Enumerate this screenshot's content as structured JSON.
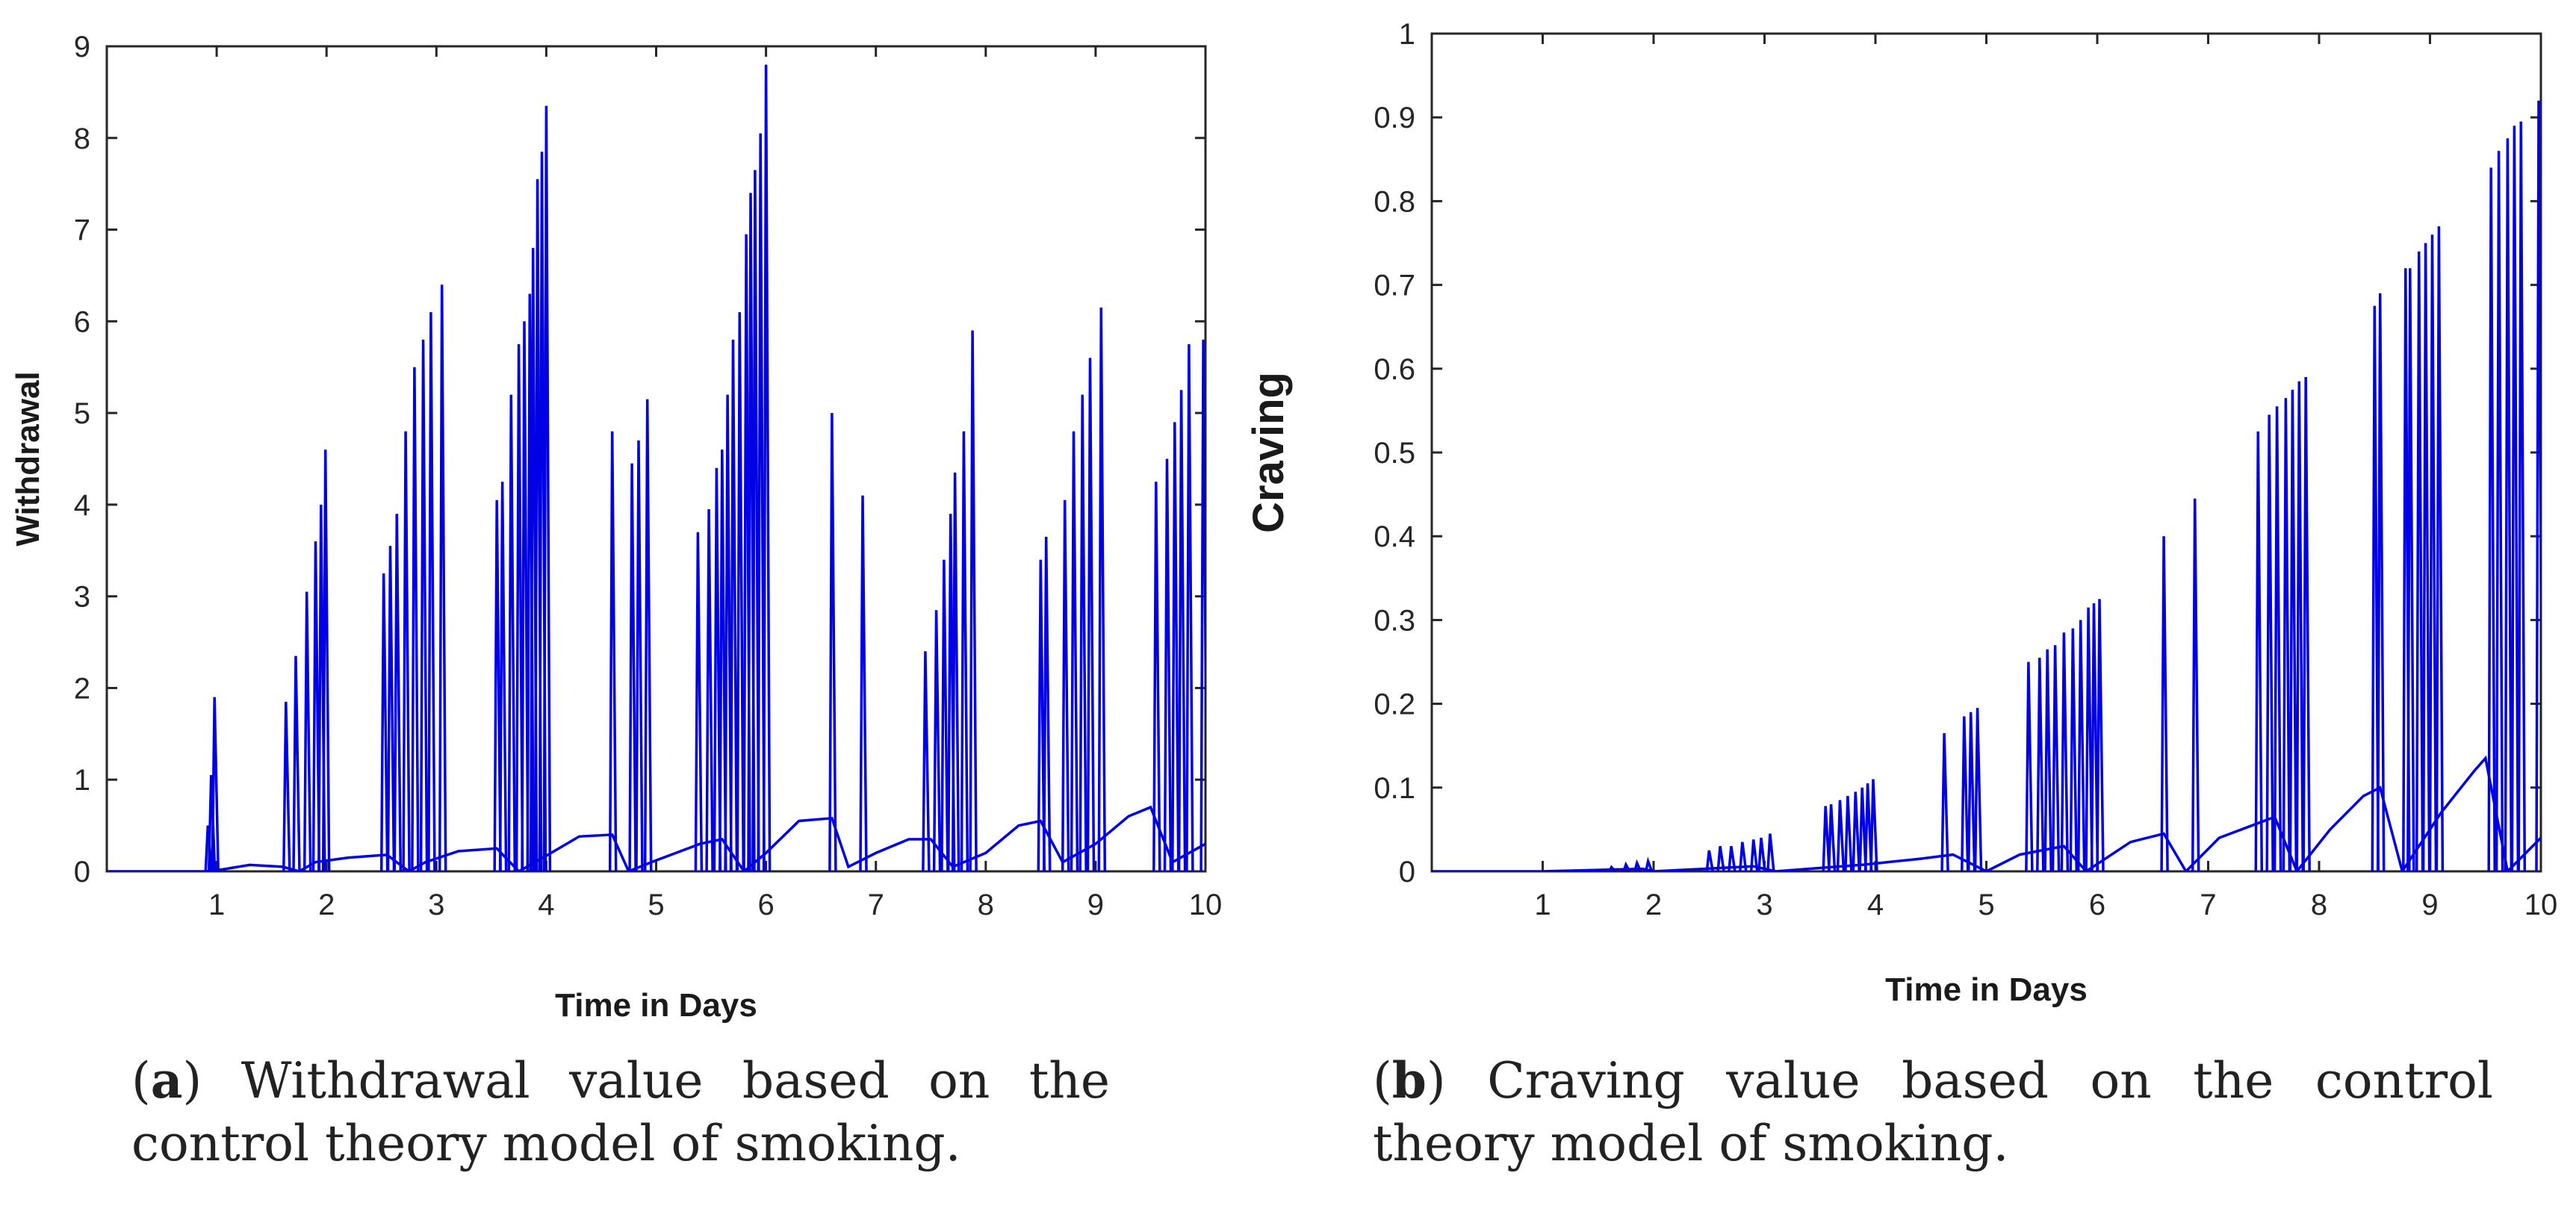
{
  "chart_data": [
    {
      "type": "line",
      "id": "a",
      "title": "",
      "xlabel": "Time in Days",
      "ylabel": "Withdrawal",
      "xlim": [
        0,
        10
      ],
      "ylim": [
        0,
        9
      ],
      "xticks": [
        1,
        2,
        3,
        4,
        5,
        6,
        7,
        8,
        9,
        10
      ],
      "yticks": [
        0,
        1,
        2,
        3,
        4,
        5,
        6,
        7,
        8,
        9
      ],
      "grid": false,
      "color": "#0000e6",
      "series": [
        {
          "name": "Withdrawal",
          "baseline": [
            [
              0,
              0
            ],
            [
              0.9,
              0
            ],
            [
              1.05,
              0.02
            ],
            [
              1.3,
              0.07
            ],
            [
              1.6,
              0.05
            ],
            [
              1.75,
              0.0
            ],
            [
              1.9,
              0.1
            ],
            [
              2.2,
              0.15
            ],
            [
              2.55,
              0.18
            ],
            [
              2.75,
              0.0
            ],
            [
              2.9,
              0.1
            ],
            [
              3.2,
              0.22
            ],
            [
              3.55,
              0.25
            ],
            [
              3.75,
              0.0
            ],
            [
              3.9,
              0.1
            ],
            [
              4.3,
              0.38
            ],
            [
              4.6,
              0.4
            ],
            [
              4.75,
              0.0
            ],
            [
              5.0,
              0.12
            ],
            [
              5.4,
              0.3
            ],
            [
              5.6,
              0.35
            ],
            [
              5.8,
              0.0
            ],
            [
              6.0,
              0.2
            ],
            [
              6.3,
              0.55
            ],
            [
              6.6,
              0.58
            ],
            [
              6.75,
              0.05
            ],
            [
              7.0,
              0.2
            ],
            [
              7.3,
              0.35
            ],
            [
              7.5,
              0.35
            ],
            [
              7.7,
              0.05
            ],
            [
              8.0,
              0.2
            ],
            [
              8.3,
              0.5
            ],
            [
              8.5,
              0.55
            ],
            [
              8.7,
              0.1
            ],
            [
              9.0,
              0.3
            ],
            [
              9.3,
              0.6
            ],
            [
              9.5,
              0.7
            ],
            [
              9.7,
              0.1
            ],
            [
              10.0,
              0.3
            ]
          ],
          "spikes": [
            [
              0.92,
              0.5
            ],
            [
              0.95,
              1.05
            ],
            [
              0.98,
              1.9
            ],
            [
              1.63,
              1.85
            ],
            [
              1.72,
              2.35
            ],
            [
              1.82,
              3.05
            ],
            [
              1.9,
              3.6
            ],
            [
              1.95,
              4.0
            ],
            [
              1.99,
              4.6
            ],
            [
              2.52,
              3.25
            ],
            [
              2.58,
              3.55
            ],
            [
              2.64,
              3.9
            ],
            [
              2.72,
              4.8
            ],
            [
              2.8,
              5.5
            ],
            [
              2.88,
              5.8
            ],
            [
              2.95,
              6.1
            ],
            [
              3.05,
              6.4
            ],
            [
              3.55,
              4.05
            ],
            [
              3.6,
              4.25
            ],
            [
              3.68,
              5.2
            ],
            [
              3.75,
              5.75
            ],
            [
              3.8,
              6.0
            ],
            [
              3.85,
              6.3
            ],
            [
              3.88,
              6.8
            ],
            [
              3.92,
              7.55
            ],
            [
              3.96,
              7.85
            ],
            [
              4.0,
              8.35
            ],
            [
              4.6,
              4.8
            ],
            [
              4.78,
              4.45
            ],
            [
              4.84,
              4.7
            ],
            [
              4.92,
              5.15
            ],
            [
              5.38,
              3.7
            ],
            [
              5.48,
              3.95
            ],
            [
              5.55,
              4.4
            ],
            [
              5.6,
              4.6
            ],
            [
              5.65,
              5.2
            ],
            [
              5.7,
              5.8
            ],
            [
              5.76,
              6.1
            ],
            [
              5.82,
              6.95
            ],
            [
              5.86,
              7.4
            ],
            [
              5.9,
              7.65
            ],
            [
              5.95,
              8.05
            ],
            [
              6.0,
              8.8
            ],
            [
              6.6,
              5.0
            ],
            [
              6.88,
              4.1
            ],
            [
              7.45,
              2.4
            ],
            [
              7.55,
              2.85
            ],
            [
              7.62,
              3.4
            ],
            [
              7.68,
              3.9
            ],
            [
              7.72,
              4.35
            ],
            [
              7.8,
              4.8
            ],
            [
              7.88,
              5.9
            ],
            [
              8.5,
              3.4
            ],
            [
              8.55,
              3.65
            ],
            [
              8.72,
              4.05
            ],
            [
              8.8,
              4.8
            ],
            [
              8.88,
              5.2
            ],
            [
              8.95,
              5.6
            ],
            [
              9.05,
              6.15
            ],
            [
              9.55,
              4.25
            ],
            [
              9.65,
              4.5
            ],
            [
              9.72,
              4.9
            ],
            [
              9.78,
              5.25
            ],
            [
              9.85,
              5.75
            ],
            [
              9.98,
              5.8
            ]
          ]
        }
      ]
    },
    {
      "type": "line",
      "id": "b",
      "title": "",
      "xlabel": "Time in Days",
      "ylabel": "Craving",
      "xlim": [
        0,
        10
      ],
      "ylim": [
        0,
        1
      ],
      "xticks": [
        1,
        2,
        3,
        4,
        5,
        6,
        7,
        8,
        9,
        10
      ],
      "yticks": [
        0,
        0.1,
        0.2,
        0.3,
        0.4,
        0.5,
        0.6,
        0.7,
        0.8,
        0.9,
        1
      ],
      "grid": false,
      "color": "#0000e6",
      "series": [
        {
          "name": "Craving",
          "baseline": [
            [
              0,
              0
            ],
            [
              1.0,
              0.0
            ],
            [
              1.9,
              0.003
            ],
            [
              2.0,
              0.0
            ],
            [
              2.9,
              0.006
            ],
            [
              3.1,
              0.0
            ],
            [
              3.9,
              0.008
            ],
            [
              4.4,
              0.015
            ],
            [
              4.7,
              0.02
            ],
            [
              5.0,
              0.0
            ],
            [
              5.3,
              0.02
            ],
            [
              5.7,
              0.03
            ],
            [
              5.9,
              0.0
            ],
            [
              6.3,
              0.035
            ],
            [
              6.6,
              0.045
            ],
            [
              6.8,
              0.0
            ],
            [
              7.1,
              0.04
            ],
            [
              7.4,
              0.055
            ],
            [
              7.6,
              0.065
            ],
            [
              7.8,
              0.0
            ],
            [
              8.1,
              0.05
            ],
            [
              8.4,
              0.09
            ],
            [
              8.55,
              0.1
            ],
            [
              8.75,
              0.0
            ],
            [
              9.1,
              0.07
            ],
            [
              9.4,
              0.12
            ],
            [
              9.5,
              0.135
            ],
            [
              9.7,
              0.0
            ],
            [
              10.0,
              0.04
            ]
          ],
          "spikes": [
            [
              1.62,
              0.005
            ],
            [
              1.75,
              0.008
            ],
            [
              1.85,
              0.01
            ],
            [
              1.95,
              0.012
            ],
            [
              2.5,
              0.025
            ],
            [
              2.6,
              0.03
            ],
            [
              2.7,
              0.03
            ],
            [
              2.8,
              0.035
            ],
            [
              2.9,
              0.038
            ],
            [
              2.97,
              0.04
            ],
            [
              3.05,
              0.045
            ],
            [
              3.55,
              0.078
            ],
            [
              3.6,
              0.08
            ],
            [
              3.68,
              0.085
            ],
            [
              3.75,
              0.09
            ],
            [
              3.82,
              0.095
            ],
            [
              3.88,
              0.1
            ],
            [
              3.93,
              0.105
            ],
            [
              3.98,
              0.11
            ],
            [
              4.62,
              0.165
            ],
            [
              4.8,
              0.185
            ],
            [
              4.86,
              0.19
            ],
            [
              4.92,
              0.195
            ],
            [
              5.38,
              0.25
            ],
            [
              5.48,
              0.255
            ],
            [
              5.55,
              0.265
            ],
            [
              5.62,
              0.27
            ],
            [
              5.7,
              0.285
            ],
            [
              5.78,
              0.29
            ],
            [
              5.85,
              0.3
            ],
            [
              5.92,
              0.315
            ],
            [
              5.97,
              0.32
            ],
            [
              6.02,
              0.325
            ],
            [
              6.6,
              0.4
            ],
            [
              6.88,
              0.445
            ],
            [
              7.45,
              0.525
            ],
            [
              7.55,
              0.545
            ],
            [
              7.62,
              0.555
            ],
            [
              7.7,
              0.565
            ],
            [
              7.76,
              0.575
            ],
            [
              7.82,
              0.585
            ],
            [
              7.88,
              0.59
            ],
            [
              8.5,
              0.675
            ],
            [
              8.55,
              0.69
            ],
            [
              8.78,
              0.72
            ],
            [
              8.82,
              0.72
            ],
            [
              8.9,
              0.74
            ],
            [
              8.96,
              0.75
            ],
            [
              9.02,
              0.76
            ],
            [
              9.08,
              0.77
            ],
            [
              9.55,
              0.84
            ],
            [
              9.62,
              0.86
            ],
            [
              9.7,
              0.875
            ],
            [
              9.76,
              0.89
            ],
            [
              9.82,
              0.895
            ],
            [
              9.98,
              0.92
            ]
          ]
        }
      ]
    }
  ],
  "captions": {
    "a": {
      "label": "a",
      "text": " Withdrawal value based on the control theory model of smoking."
    },
    "b": {
      "label": "b",
      "text": " Craving value based on the control theory model of smoking."
    }
  }
}
